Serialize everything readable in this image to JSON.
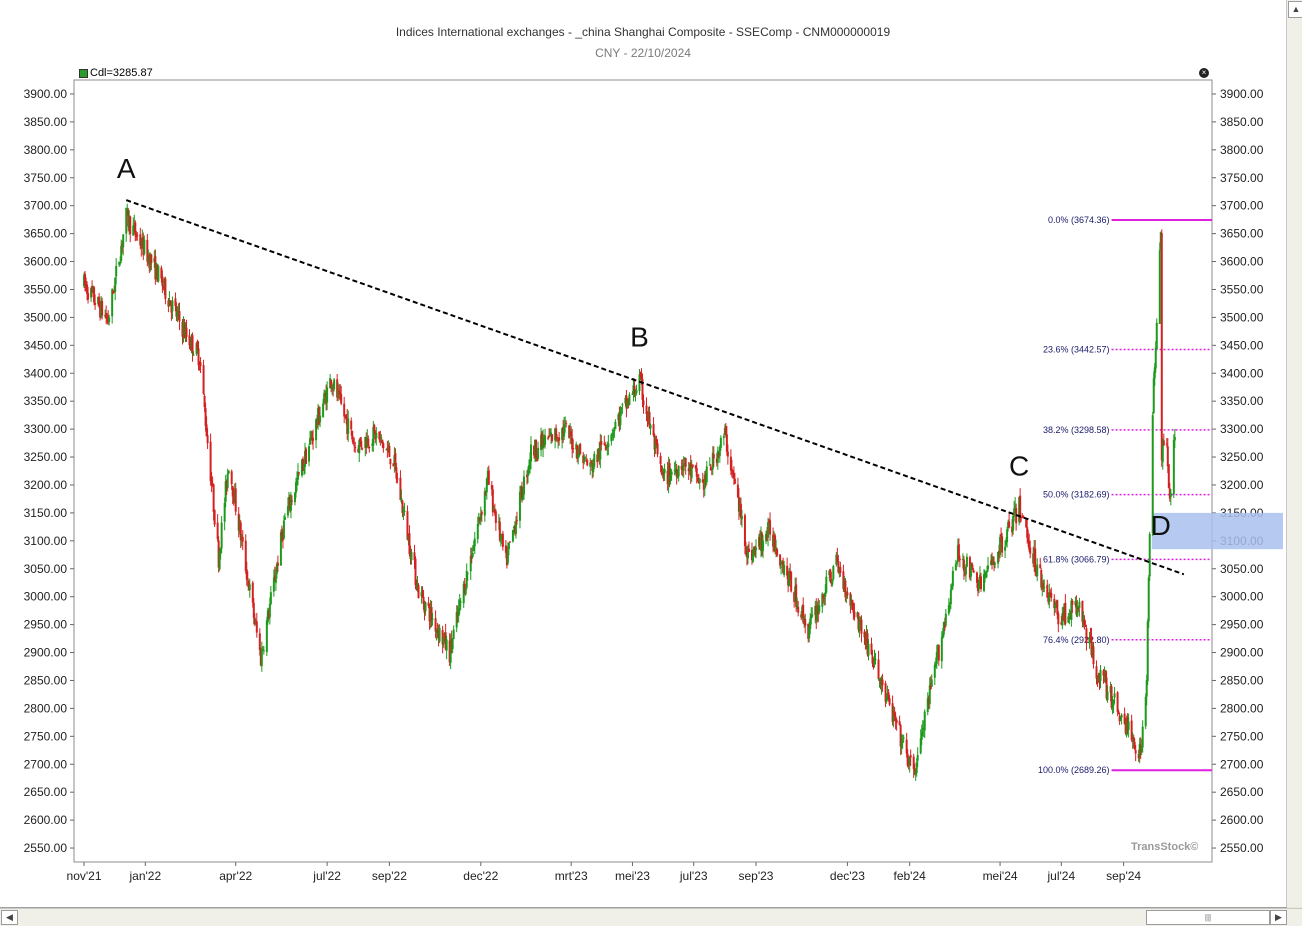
{
  "title": "Indices International exchanges - _china Shanghai Composite - SSEComp - CNM000000019",
  "subtitle": "CNY - 22/10/2024",
  "legend_label": "Cdl=3285.87",
  "watermark": "TransStock©",
  "icons": {
    "close": "close-icon",
    "legend": "candle-legend-icon"
  },
  "colors": {
    "up": "#1c9a1c",
    "down": "#d42020",
    "fib": "#e020e0",
    "trend": "#000000",
    "zone": "#a9c0ee"
  },
  "chart_data": {
    "type": "candlestick",
    "ylim": [
      2525,
      3925
    ],
    "y_ticks": [
      "3900.00",
      "3850.00",
      "3800.00",
      "3750.00",
      "3700.00",
      "3650.00",
      "3600.00",
      "3550.00",
      "3500.00",
      "3450.00",
      "3400.00",
      "3350.00",
      "3300.00",
      "3250.00",
      "3200.00",
      "3150.00",
      "3100.00",
      "3050.00",
      "3000.00",
      "2950.00",
      "2900.00",
      "2850.00",
      "2800.00",
      "2750.00",
      "2700.00",
      "2650.00",
      "2600.00",
      "2550.00"
    ],
    "x_ticks": [
      "nov'21",
      "jan'22",
      "apr'22",
      "jul'22",
      "sep'22",
      "dec'22",
      "mrt'23",
      "mei'23",
      "jul'23",
      "sep'23",
      "dec'23",
      "feb'24",
      "mei'24",
      "jul'24",
      "sep'24"
    ],
    "x_tick_dates": [
      "2021-11",
      "2022-01",
      "2022-04",
      "2022-07",
      "2022-09",
      "2022-12",
      "2023-03",
      "2023-05",
      "2023-07",
      "2023-09",
      "2023-12",
      "2024-02",
      "2024-05",
      "2024-07",
      "2024-09"
    ],
    "last_close": 3285.87,
    "price_path": [
      [
        "2021-11-01",
        3560
      ],
      [
        "2021-11-25",
        3495
      ],
      [
        "2021-12-13",
        3680
      ],
      [
        "2022-01-10",
        3590
      ],
      [
        "2022-02-10",
        3470
      ],
      [
        "2022-02-24",
        3430
      ],
      [
        "2022-03-15",
        3070
      ],
      [
        "2022-03-25",
        3240
      ],
      [
        "2022-04-26",
        2890
      ],
      [
        "2022-05-20",
        3140
      ],
      [
        "2022-07-05",
        3390
      ],
      [
        "2022-07-29",
        3270
      ],
      [
        "2022-08-18",
        3290
      ],
      [
        "2022-09-05",
        3245
      ],
      [
        "2022-09-30",
        3010
      ],
      [
        "2022-10-31",
        2900
      ],
      [
        "2022-12-08",
        3210
      ],
      [
        "2022-12-26",
        3060
      ],
      [
        "2023-01-20",
        3260
      ],
      [
        "2023-02-22",
        3300
      ],
      [
        "2023-03-20",
        3230
      ],
      [
        "2023-05-08",
        3385
      ],
      [
        "2023-05-31",
        3210
      ],
      [
        "2023-06-20",
        3240
      ],
      [
        "2023-07-10",
        3200
      ],
      [
        "2023-08-01",
        3290
      ],
      [
        "2023-08-25",
        3070
      ],
      [
        "2023-09-15",
        3120
      ],
      [
        "2023-10-23",
        2940
      ],
      [
        "2023-11-20",
        3060
      ],
      [
        "2023-12-22",
        2910
      ],
      [
        "2024-02-05",
        2680
      ],
      [
        "2024-03-20",
        3075
      ],
      [
        "2024-04-12",
        3020
      ],
      [
        "2024-05-20",
        3160
      ],
      [
        "2024-06-07",
        3050
      ],
      [
        "2024-06-28",
        2965
      ],
      [
        "2024-07-19",
        2980
      ],
      [
        "2024-08-05",
        2870
      ],
      [
        "2024-09-18",
        2720
      ],
      [
        "2024-09-24",
        2860
      ],
      [
        "2024-09-30",
        3340
      ],
      [
        "2024-10-08",
        3670
      ],
      [
        "2024-10-09",
        3260
      ],
      [
        "2024-10-14",
        3290
      ],
      [
        "2024-10-17",
        3170
      ],
      [
        "2024-10-22",
        3285.87
      ]
    ],
    "trendline": {
      "from": [
        "2021-12-13",
        3710
      ],
      "to": [
        "2024-10-31",
        3040
      ]
    },
    "wave_labels": [
      {
        "label": "A",
        "date": "2021-12-13",
        "value": 3750
      },
      {
        "label": "B",
        "date": "2023-05-08",
        "value": 3448
      },
      {
        "label": "C",
        "date": "2024-05-20",
        "value": 3217
      },
      {
        "label": "D",
        "date": "2024-10-08",
        "value": 3110
      }
    ],
    "zone": {
      "low": 3085,
      "high": 3150,
      "from": "2024-09-29"
    },
    "fib_levels": [
      {
        "label": "0.0% (3674.36)",
        "value": 3674.36,
        "style": "solid"
      },
      {
        "label": "23.6% (3442.57)",
        "value": 3442.57,
        "style": "dotted"
      },
      {
        "label": "38.2% (3298.58)",
        "value": 3298.58,
        "style": "dotted"
      },
      {
        "label": "50.0% (3182.69)",
        "value": 3182.69,
        "style": "dotted"
      },
      {
        "label": "61.8% (3066.79)",
        "value": 3066.79,
        "style": "dotted"
      },
      {
        "label": "76.4% (2922.80)",
        "value": 2922.8,
        "style": "dotted"
      },
      {
        "label": "100.0% (2689.26)",
        "value": 2689.26,
        "style": "solid"
      }
    ],
    "fib_from": "2024-08-20",
    "grid": false
  }
}
